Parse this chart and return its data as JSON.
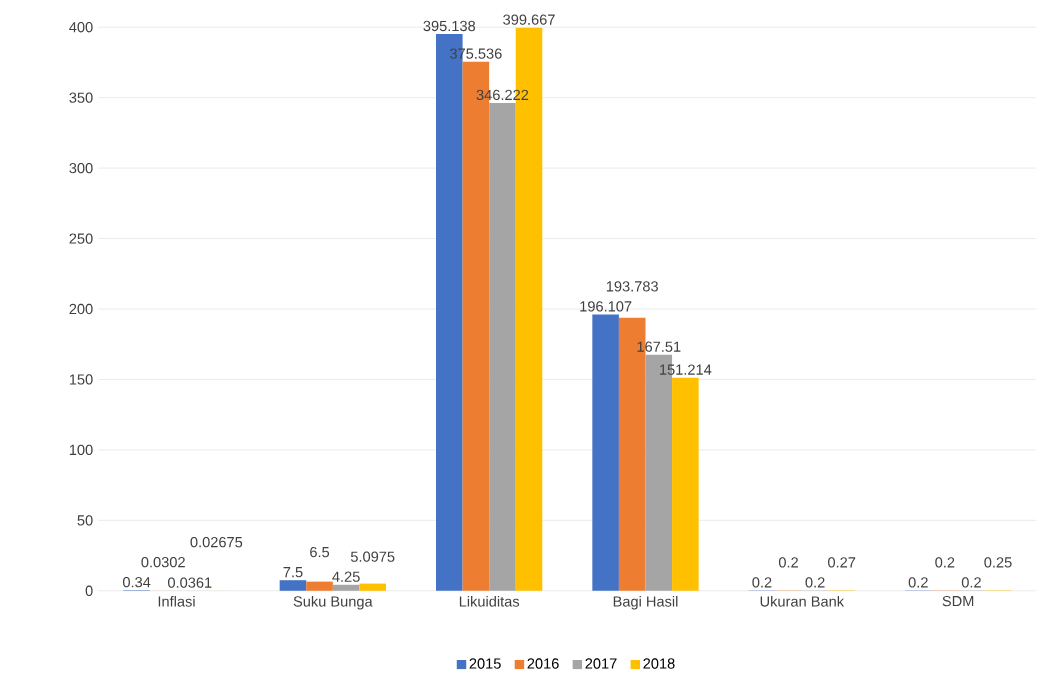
{
  "chart_data": {
    "type": "bar",
    "categories": [
      "Inflasi",
      "Suku Bunga",
      "Likuiditas",
      "Bagi Hasil",
      "Ukuran Bank",
      "SDM"
    ],
    "series": [
      {
        "name": "2015",
        "color": "#4472c4",
        "values": [
          0.34,
          7.5,
          395.138,
          196.107,
          0.2,
          0.2
        ],
        "value_labels": [
          "0.34",
          "7.5",
          "395.138",
          "196.107",
          "0.2",
          "0.2"
        ]
      },
      {
        "name": "2016",
        "color": "#ed7d31",
        "values": [
          0.0302,
          6.5,
          375.536,
          193.783,
          0.2,
          0.2
        ],
        "value_labels": [
          "0.0302",
          "6.5",
          "375.536",
          "193.783",
          "0.2",
          "0.2"
        ]
      },
      {
        "name": "2017",
        "color": "#a5a5a5",
        "values": [
          0.0361,
          4.25,
          346.222,
          167.51,
          0.2,
          0.2
        ],
        "value_labels": [
          "0.0361",
          "4.25",
          "346.222",
          "167.51",
          "0.2",
          "0.2"
        ]
      },
      {
        "name": "2018",
        "color": "#ffc000",
        "values": [
          0.02675,
          5.0975,
          399.667,
          151.214,
          0.27,
          0.25
        ],
        "value_labels": [
          "0.02675",
          "5.0975",
          "399.667",
          "151.214",
          "0.27",
          "0.25"
        ]
      }
    ],
    "ylim": [
      0,
      400
    ],
    "yticks": [
      0,
      50,
      100,
      150,
      200,
      250,
      300,
      350,
      400
    ],
    "grid": "y",
    "legend": "bottom"
  }
}
